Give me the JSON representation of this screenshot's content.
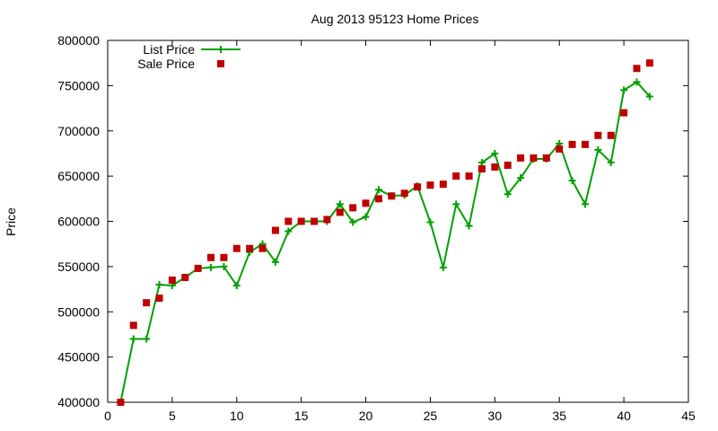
{
  "chart_data": {
    "type": "line",
    "title": "Aug 2013 95123 Home Prices",
    "xlabel": "",
    "ylabel": "Price",
    "xlim": [
      0,
      45
    ],
    "ylim": [
      400000,
      800000
    ],
    "xticks": [
      0,
      5,
      10,
      15,
      20,
      25,
      30,
      35,
      40,
      45
    ],
    "yticks": [
      400000,
      450000,
      500000,
      550000,
      600000,
      650000,
      700000,
      750000,
      800000
    ],
    "grid": false,
    "legend_position": "top-left",
    "series": [
      {
        "name": "List Price",
        "style": "line+cross",
        "color": "#00a000",
        "points": [
          [
            1,
            400000
          ],
          [
            2,
            470000
          ],
          [
            3,
            470000
          ],
          [
            4,
            530000
          ],
          [
            5,
            529000
          ],
          [
            6,
            538000
          ],
          [
            7,
            548000
          ],
          [
            8,
            549000
          ],
          [
            9,
            550000
          ],
          [
            10,
            529000
          ],
          [
            11,
            566000
          ],
          [
            12,
            575000
          ],
          [
            13,
            555000
          ],
          [
            14,
            589000
          ],
          [
            15,
            600000
          ],
          [
            16,
            600000
          ],
          [
            17,
            600000
          ],
          [
            18,
            619000
          ],
          [
            19,
            599000
          ],
          [
            20,
            605000
          ],
          [
            21,
            635000
          ],
          [
            22,
            628000
          ],
          [
            23,
            629000
          ],
          [
            24,
            639000
          ],
          [
            25,
            599000
          ],
          [
            26,
            549000
          ],
          [
            27,
            619000
          ],
          [
            28,
            595000
          ],
          [
            29,
            665000
          ],
          [
            30,
            675000
          ],
          [
            31,
            630000
          ],
          [
            32,
            648000
          ],
          [
            33,
            669000
          ],
          [
            34,
            669000
          ],
          [
            35,
            686000
          ],
          [
            36,
            645000
          ],
          [
            37,
            619000
          ],
          [
            38,
            679000
          ],
          [
            39,
            665000
          ],
          [
            40,
            745000
          ],
          [
            41,
            754000
          ],
          [
            42,
            738000
          ]
        ]
      },
      {
        "name": "Sale Price",
        "style": "square",
        "color": "#c00000",
        "points": [
          [
            1,
            400000
          ],
          [
            2,
            485000
          ],
          [
            3,
            510000
          ],
          [
            4,
            515000
          ],
          [
            5,
            535000
          ],
          [
            6,
            538000
          ],
          [
            7,
            548000
          ],
          [
            8,
            560000
          ],
          [
            9,
            560000
          ],
          [
            10,
            570000
          ],
          [
            11,
            570000
          ],
          [
            12,
            570000
          ],
          [
            13,
            590000
          ],
          [
            14,
            600000
          ],
          [
            15,
            600000
          ],
          [
            16,
            600000
          ],
          [
            17,
            602000
          ],
          [
            18,
            610000
          ],
          [
            19,
            615000
          ],
          [
            20,
            620000
          ],
          [
            21,
            625000
          ],
          [
            22,
            628000
          ],
          [
            23,
            631000
          ],
          [
            24,
            638000
          ],
          [
            25,
            640000
          ],
          [
            26,
            641000
          ],
          [
            27,
            650000
          ],
          [
            28,
            650000
          ],
          [
            29,
            658000
          ],
          [
            30,
            660000
          ],
          [
            31,
            662000
          ],
          [
            32,
            670000
          ],
          [
            33,
            670000
          ],
          [
            34,
            670000
          ],
          [
            35,
            680000
          ],
          [
            36,
            685000
          ],
          [
            37,
            685000
          ],
          [
            38,
            695000
          ],
          [
            39,
            695000
          ],
          [
            40,
            720000
          ],
          [
            41,
            769000
          ],
          [
            42,
            775000
          ]
        ]
      }
    ]
  }
}
